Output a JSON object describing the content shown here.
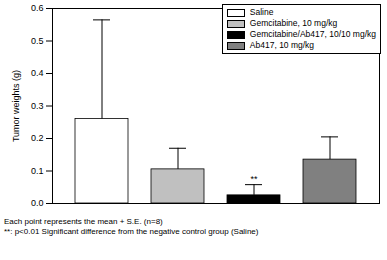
{
  "chart_data": {
    "type": "bar",
    "y_label": "Tumor weights (g)",
    "categories": [
      null
    ],
    "series": [
      {
        "name": "Saline",
        "color": "#ffffff",
        "values": [
          0.26
        ],
        "errors": [
          0.305
        ]
      },
      {
        "name": "Gemcitabine, 10 mg/kg",
        "color": "#c0c0c0",
        "values": [
          0.105
        ],
        "errors": [
          0.065
        ]
      },
      {
        "name": "Gemcitabine/Ab417, 10/10 mg/kg",
        "color": "#000000",
        "values": [
          0.025
        ],
        "errors": [
          0.033
        ]
      },
      {
        "name": "Ab417, 10 mg/kg",
        "color": "#808080",
        "values": [
          0.135
        ],
        "errors": [
          0.07
        ]
      }
    ],
    "annotations": [
      {
        "text": "**",
        "series": "Gemcitabine/Ab417, 10/10 mg/kg"
      }
    ],
    "caption": [
      "Each point represents the mean + S.E. (n=8)",
      "**: p<0.01 Significant difference from the negative control group (Saline)"
    ],
    "ylim": [
      0,
      0.6
    ],
    "yticks": [
      {
        "value": 0,
        "label": "0.0"
      },
      0.1,
      0.2,
      0.3,
      0.4,
      0.5,
      0.6
    ],
    "legend": "upper right",
    "tick_labels": "y"
  }
}
